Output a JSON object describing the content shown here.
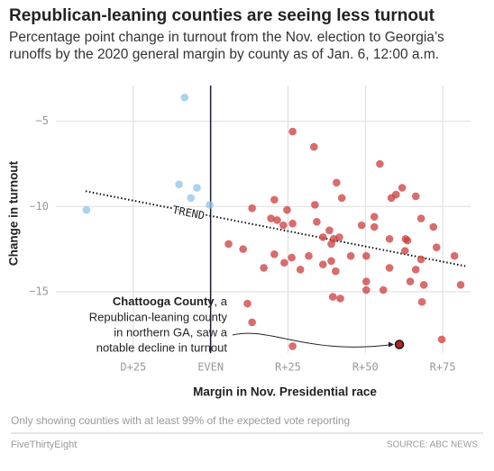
{
  "chart_data": {
    "type": "scatter",
    "title": "Republican-leaning counties are seeing less turnout",
    "subtitle": [
      "Percentage point change in turnout from the Nov. election to Georgia’s",
      "runoffs by the 2020 general margin by county as of Jan. 6, 12:00 a.m."
    ],
    "xlabel": "Margin in Nov. Presidential race",
    "ylabel": "Change in turnout",
    "xlim": [
      -50,
      84
    ],
    "ylim": [
      -18.6,
      -2.9
    ],
    "xticks": [
      {
        "value": -25,
        "label": "D+25"
      },
      {
        "value": 0,
        "label": "EVEN"
      },
      {
        "value": 25,
        "label": "R+25"
      },
      {
        "value": 50,
        "label": "R+50"
      },
      {
        "value": 75,
        "label": "R+75"
      }
    ],
    "yticks": [
      {
        "value": -5,
        "label": "−5"
      },
      {
        "value": -10,
        "label": "−10"
      },
      {
        "value": -15,
        "label": "−15"
      }
    ],
    "grid": true,
    "series": [
      {
        "color": "#8fc3ea",
        "x": [
          -8.4,
          -40.1,
          -10.2,
          -4.4,
          -6.4,
          -0.3
        ],
        "values": [
          -3.6,
          -10.2,
          -8.7,
          -8.9,
          -9.5,
          -9.9
        ]
      },
      {
        "color": "#cc3b3b",
        "x": [
          26.5,
          33.4,
          40.7,
          42.4,
          54.7,
          61.9,
          58.4,
          59.9,
          66.3,
          13.4,
          20.6,
          24.7,
          19.5,
          21.5,
          23.5,
          26.5,
          33.7,
          34.3,
          36.3,
          38.4,
          39.8,
          41.6,
          39,
          48.8,
          52.9,
          52.9,
          57.8,
          63,
          63.6,
          68,
          72,
          5.8,
          10.5,
          17.2,
          20.6,
          23.8,
          26.2,
          29,
          31.7,
          36.3,
          39,
          40.4,
          45.3,
          50.3,
          62.8,
          57.8,
          68,
          66.3,
          64.5,
          68.9,
          73,
          78.8,
          80.8,
          50.3,
          50.3,
          55.8,
          39.5,
          41.9,
          68.3,
          11.9,
          13.4,
          26.5,
          74.7
        ],
        "values": [
          -5.6,
          -6.5,
          -8.6,
          -9.5,
          -7.5,
          -8.9,
          -9.5,
          -9.3,
          -9.4,
          -10.1,
          -9.6,
          -10.2,
          -10.7,
          -10.8,
          -11.1,
          -11.0,
          -9.9,
          -10.9,
          -11.8,
          -11.4,
          -11.9,
          -11.8,
          -12.2,
          -11.1,
          -10.6,
          -11.2,
          -11.9,
          -11.9,
          -12.0,
          -10.7,
          -11.2,
          -12.2,
          -12.5,
          -13.6,
          -12.8,
          -13.3,
          -13.0,
          -13.7,
          -12.9,
          -13.4,
          -13.2,
          -13.8,
          -12.9,
          -12.9,
          -12.6,
          -13.6,
          -13.1,
          -13.7,
          -14.4,
          -14.6,
          -12.4,
          -12.9,
          -14.6,
          -14.4,
          -14.9,
          -14.9,
          -15.3,
          -15.4,
          -15.6,
          -15.7,
          -16.8,
          -18.2,
          -17.8
        ]
      }
    ],
    "highlight": {
      "x": 61,
      "y": -18.1,
      "color": "#b52424"
    },
    "trend": {
      "label": "TREND",
      "x": [
        -40.4,
        82.3
      ],
      "y": [
        -9.1,
        -13.5
      ]
    },
    "annotation": {
      "bold": "Chattooga County",
      "lines": [
        ", a",
        "Republican-leaning county",
        "in northern GA, saw a",
        "notable decline in turnout"
      ]
    },
    "note": "Only showing counties with at least 99% of the expected vote reporting",
    "brand": "FiveThirtyEight",
    "source": "SOURCE: ABC NEWS"
  }
}
